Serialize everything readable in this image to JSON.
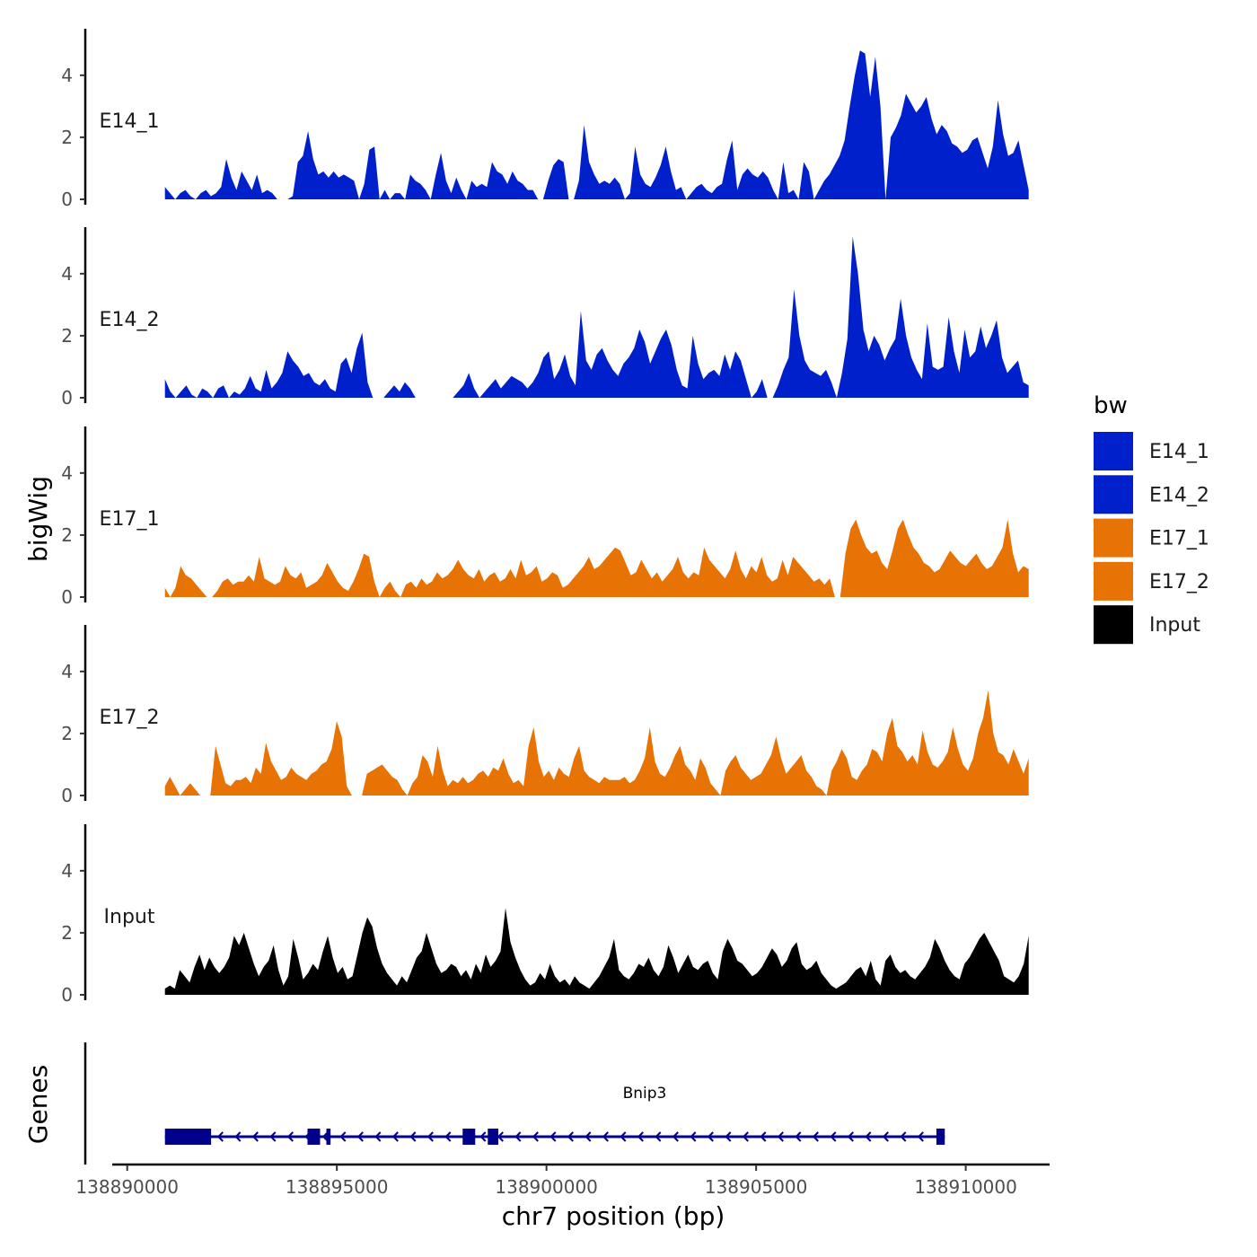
{
  "chart_data": {
    "type": "area",
    "xlabel": "chr7 position (bp)",
    "ylabel": "bigWig",
    "genes_label": "Genes",
    "xlim": [
      138889000,
      138912000
    ],
    "ylim": [
      0,
      5.5
    ],
    "x_ticks": [
      138890000,
      138895000,
      138900000,
      138905000,
      138910000
    ],
    "x_tick_labels": [
      "138890000",
      "138895000",
      "138900000",
      "138905000",
      "138910000"
    ],
    "y_ticks": [
      0,
      2,
      4
    ],
    "y_tick_labels": [
      "0",
      "2",
      "4"
    ],
    "legend": {
      "title": "bw",
      "entries": [
        {
          "label": "E14_1",
          "color": "#0020CC"
        },
        {
          "label": "E14_2",
          "color": "#0020CC"
        },
        {
          "label": "E17_1",
          "color": "#E87305"
        },
        {
          "label": "E17_2",
          "color": "#E87305"
        },
        {
          "label": "Input",
          "color": "#000000"
        }
      ]
    },
    "x_range": [
      138890900,
      138911500
    ],
    "series": [
      {
        "name": "E14_1",
        "color": "#0020CC",
        "values": [
          0.4,
          0.2,
          0,
          0.2,
          0.3,
          0.1,
          0,
          0.2,
          0.3,
          0.1,
          0.2,
          0.4,
          1.3,
          0.7,
          0.3,
          0.9,
          0.6,
          0.3,
          0.8,
          0.2,
          0.3,
          0.2,
          0,
          0,
          0,
          0.1,
          1.2,
          1.4,
          2.2,
          1.3,
          0.8,
          0.9,
          0.7,
          0.9,
          0.7,
          0.8,
          0.7,
          0.6,
          0,
          0.5,
          1.6,
          1.7,
          0,
          0.3,
          0,
          0.2,
          0.2,
          0,
          0.8,
          0.6,
          0.5,
          0.3,
          0,
          0.8,
          1.5,
          0.6,
          0.2,
          0.7,
          0.3,
          0,
          0.6,
          0.4,
          0.5,
          0.4,
          1.2,
          0.9,
          0.8,
          0.5,
          0.9,
          0.6,
          0.5,
          0.3,
          0.3,
          0,
          0,
          0.6,
          1.1,
          1.3,
          1.2,
          0,
          0,
          0.6,
          2.4,
          1.2,
          0.8,
          0.5,
          0.6,
          0.5,
          0.7,
          0.5,
          0,
          0.2,
          1.7,
          0.8,
          0.5,
          0.4,
          0.7,
          1.1,
          1.7,
          0.9,
          0.3,
          0.4,
          0,
          0.2,
          0.4,
          0.5,
          0.3,
          0.2,
          0.4,
          0.5,
          1.3,
          1.9,
          0.3,
          0.8,
          1.0,
          0.8,
          0.7,
          0.9,
          0.7,
          0.3,
          0,
          1.2,
          0.2,
          0.3,
          0,
          1.2,
          0.9,
          0,
          0.3,
          0.6,
          0.8,
          1.1,
          1.4,
          1.9,
          3.0,
          4.0,
          4.8,
          4.7,
          3.3,
          4.6,
          3.0,
          0,
          2.0,
          2.3,
          2.7,
          3.4,
          3.1,
          2.8,
          3.0,
          3.3,
          2.6,
          2.1,
          2.4,
          2.2,
          1.8,
          1.7,
          1.5,
          1.6,
          1.9,
          2.0,
          1.5,
          1.0,
          1.7,
          3.2,
          2.1,
          1.4,
          1.5,
          1.9,
          1.1,
          0.3
        ]
      },
      {
        "name": "E14_2",
        "color": "#0020CC",
        "values": [
          0.6,
          0.2,
          0,
          0.2,
          0.4,
          0.1,
          0,
          0.3,
          0.2,
          0,
          0.3,
          0.4,
          0,
          0.2,
          0.1,
          0.3,
          0.7,
          0.3,
          0.2,
          0.9,
          0.3,
          0.5,
          0.8,
          1.5,
          1.2,
          1.0,
          0.7,
          0.8,
          0.5,
          0.4,
          0.6,
          0.3,
          0.2,
          1.1,
          1.3,
          0.8,
          1.6,
          2.1,
          0.5,
          0,
          0,
          0,
          0.2,
          0.4,
          0.2,
          0.5,
          0.3,
          0,
          0,
          0,
          0,
          0,
          0,
          0,
          0,
          0.2,
          0.4,
          0.8,
          0.3,
          0,
          0.2,
          0.4,
          0.6,
          0.3,
          0.5,
          0.7,
          0.6,
          0.5,
          0.3,
          0.5,
          0.8,
          1.3,
          1.5,
          0.6,
          0.9,
          1.4,
          0.7,
          0.4,
          2.8,
          1.2,
          0.9,
          1.4,
          1.6,
          1.2,
          0.9,
          0.7,
          1.1,
          1.3,
          1.6,
          2.2,
          1.8,
          1.1,
          1.5,
          1.9,
          2.2,
          1.7,
          0.9,
          0.4,
          0.3,
          2.0,
          1.1,
          0.6,
          0.8,
          0.9,
          0.7,
          1.4,
          0.9,
          1.5,
          1.2,
          0.6,
          0,
          0.2,
          0.6,
          0,
          0,
          0.4,
          0.9,
          1.3,
          3.5,
          2.0,
          1.2,
          0.9,
          0.8,
          0.7,
          0.9,
          0.5,
          0,
          0.8,
          1.9,
          5.2,
          4.0,
          2.2,
          1.5,
          2.0,
          1.7,
          1.2,
          1.6,
          1.9,
          3.2,
          2.0,
          1.3,
          0.9,
          0.6,
          2.4,
          1.0,
          0.9,
          1.0,
          2.6,
          1.5,
          0.8,
          2.2,
          1.3,
          1.5,
          2.3,
          1.6,
          2.0,
          2.5,
          1.3,
          0.8,
          1.0,
          1.2,
          0.5,
          0.4
        ]
      },
      {
        "name": "E17_1",
        "color": "#E87305",
        "values": [
          0.3,
          0,
          0.3,
          1.0,
          0.7,
          0.6,
          0.4,
          0.2,
          0,
          0,
          0.2,
          0.5,
          0.6,
          0.4,
          0.5,
          0.5,
          0.7,
          0.5,
          1.3,
          0.6,
          0.5,
          0.4,
          0.5,
          1.0,
          0.7,
          0.6,
          0.8,
          0.3,
          0.4,
          0.5,
          0.7,
          1.1,
          0.8,
          0.5,
          0.3,
          0.2,
          0.5,
          0.9,
          1.4,
          1.3,
          0.5,
          0,
          0.3,
          0.5,
          0.2,
          0,
          0.4,
          0.5,
          0.3,
          0.6,
          0.4,
          0.5,
          0.8,
          0.6,
          0.7,
          0.9,
          1.2,
          0.9,
          0.7,
          0.6,
          0.9,
          0.5,
          0.7,
          0.8,
          0.5,
          0.6,
          0.9,
          0.6,
          1.2,
          0.7,
          0.8,
          1.0,
          0.5,
          0.6,
          0.8,
          0.7,
          0.3,
          0.4,
          0.6,
          0.8,
          1.0,
          1.3,
          0.9,
          1.0,
          1.2,
          1.4,
          1.6,
          1.5,
          1.1,
          0.7,
          0.8,
          1.2,
          0.9,
          0.6,
          0.8,
          0.5,
          0.7,
          0.9,
          1.3,
          0.8,
          0.6,
          0.8,
          0.7,
          1.6,
          1.2,
          1.0,
          0.8,
          0.6,
          0.9,
          1.5,
          0.9,
          0.6,
          1.0,
          0.8,
          1.3,
          0.7,
          0.5,
          0.6,
          1.2,
          0.7,
          1.3,
          1.1,
          0.9,
          0.7,
          0.5,
          0.6,
          0.4,
          0.6,
          0,
          0,
          1.4,
          2.2,
          2.5,
          2.0,
          1.6,
          1.4,
          1.5,
          1.1,
          0.9,
          1.5,
          2.2,
          2.5,
          2.0,
          1.6,
          1.4,
          1.1,
          1.0,
          0.8,
          0.9,
          1.2,
          1.5,
          1.3,
          1.1,
          1.0,
          1.2,
          1.4,
          1.1,
          0.9,
          1.0,
          1.3,
          1.6,
          2.5,
          1.4,
          0.8,
          1.0,
          0.9
        ]
      },
      {
        "name": "E17_2",
        "color": "#E87305",
        "values": [
          0.3,
          0.6,
          0.3,
          0,
          0.2,
          0.4,
          0.2,
          0,
          0,
          0,
          1.6,
          1.0,
          0.4,
          0.3,
          0.5,
          0.5,
          0.6,
          0.4,
          0.9,
          0.7,
          1.7,
          1.1,
          0.8,
          0.5,
          0.6,
          0.9,
          0.7,
          0.6,
          0.5,
          0.7,
          0.8,
          1.0,
          1.1,
          1.5,
          2.4,
          1.9,
          0.3,
          0,
          0,
          0,
          0.7,
          0.8,
          0.9,
          1.0,
          0.8,
          0.6,
          0.5,
          0.2,
          0,
          0.4,
          0.6,
          1.3,
          1.1,
          0.6,
          1.6,
          0.8,
          0.3,
          0.5,
          0.4,
          0.6,
          0.4,
          0.5,
          0.7,
          0.8,
          0.6,
          0.9,
          0.8,
          1.2,
          0.7,
          0.4,
          0.5,
          0.3,
          1.6,
          2.2,
          1.1,
          0.6,
          0.8,
          0.5,
          0.9,
          0.7,
          0.6,
          1.2,
          1.6,
          0.8,
          0.6,
          0.5,
          0.4,
          0.6,
          0.5,
          0.5,
          0.5,
          0.6,
          0.4,
          0.5,
          0.8,
          1.2,
          2.2,
          1.1,
          0.7,
          0.6,
          0.9,
          1.3,
          1.6,
          1.0,
          0.8,
          0.5,
          1.2,
          0.9,
          0.4,
          0.2,
          0,
          0.8,
          1.1,
          1.3,
          0.9,
          0.7,
          0.5,
          0.6,
          0.7,
          1.0,
          1.3,
          1.9,
          1.2,
          0.7,
          0.9,
          1.1,
          1.3,
          0.8,
          0.6,
          0.3,
          0.2,
          0,
          0.8,
          1.1,
          1.5,
          1.2,
          0.6,
          0.5,
          0.8,
          1.0,
          1.5,
          1.4,
          1.1,
          2.0,
          2.5,
          1.6,
          1.4,
          1.1,
          1.3,
          1.0,
          2.1,
          1.4,
          1.0,
          0.9,
          1.1,
          1.4,
          2.2,
          1.5,
          1.0,
          0.8,
          1.2,
          2.0,
          2.5,
          3.4,
          2.0,
          1.4,
          1.3,
          1.0,
          1.5,
          1.1,
          0.7,
          1.2
        ]
      },
      {
        "name": "Input",
        "color": "#000000",
        "values": [
          0.2,
          0.3,
          0.2,
          0.8,
          0.6,
          0.4,
          0.9,
          1.3,
          0.8,
          1.2,
          0.9,
          0.7,
          0.9,
          1.2,
          1.9,
          1.6,
          2.0,
          1.5,
          1.0,
          0.6,
          0.9,
          1.1,
          1.6,
          0.8,
          0.3,
          0.6,
          1.8,
          1.2,
          0.5,
          0.7,
          1.0,
          0.8,
          1.4,
          1.9,
          1.2,
          0.7,
          0.9,
          0.5,
          0.6,
          1.3,
          2.0,
          2.5,
          2.2,
          1.5,
          1.0,
          0.7,
          0.5,
          0.3,
          0.6,
          0.4,
          0.8,
          1.2,
          1.4,
          2.0,
          1.5,
          1.0,
          0.7,
          0.8,
          1.0,
          0.9,
          0.6,
          0.8,
          0.5,
          1.0,
          0.7,
          1.3,
          0.9,
          1.1,
          1.4,
          2.8,
          1.7,
          1.2,
          0.8,
          0.5,
          0.3,
          0.4,
          0.7,
          0.5,
          1.0,
          0.6,
          0.4,
          0.5,
          0.3,
          0.6,
          0.4,
          0.3,
          0.2,
          0.4,
          0.6,
          0.9,
          1.2,
          1.8,
          0.8,
          0.6,
          0.5,
          0.7,
          1.0,
          0.9,
          1.2,
          0.8,
          0.6,
          0.9,
          1.6,
          1.2,
          0.7,
          1.0,
          1.3,
          0.9,
          0.8,
          1.0,
          1.1,
          0.7,
          0.5,
          1.4,
          1.8,
          1.5,
          1.1,
          1.0,
          0.8,
          0.6,
          0.7,
          0.9,
          1.2,
          1.5,
          1.3,
          0.9,
          1.1,
          1.5,
          1.7,
          1.0,
          0.8,
          0.9,
          1.1,
          0.7,
          0.5,
          0.3,
          0.2,
          0.3,
          0.4,
          0.6,
          0.8,
          0.9,
          0.6,
          1.1,
          0.5,
          0.3,
          1.1,
          1.3,
          0.9,
          0.7,
          0.8,
          0.6,
          0.5,
          0.7,
          0.9,
          1.2,
          1.8,
          1.5,
          1.1,
          0.8,
          0.6,
          0.5,
          1.0,
          1.2,
          1.5,
          1.8,
          2.0,
          1.7,
          1.4,
          1.1,
          0.6,
          0.5,
          0.4,
          0.6,
          1.0,
          1.9
        ]
      }
    ],
    "gene": {
      "name": "Bnip3",
      "start": 138890900,
      "end": 138909500,
      "strand": "-",
      "exons": [
        [
          138890900,
          138892000
        ],
        [
          138894300,
          138894600
        ],
        [
          138894750,
          138894850
        ],
        [
          138898000,
          138898300
        ],
        [
          138898600,
          138898850
        ],
        [
          138909300,
          138909500
        ]
      ]
    }
  }
}
